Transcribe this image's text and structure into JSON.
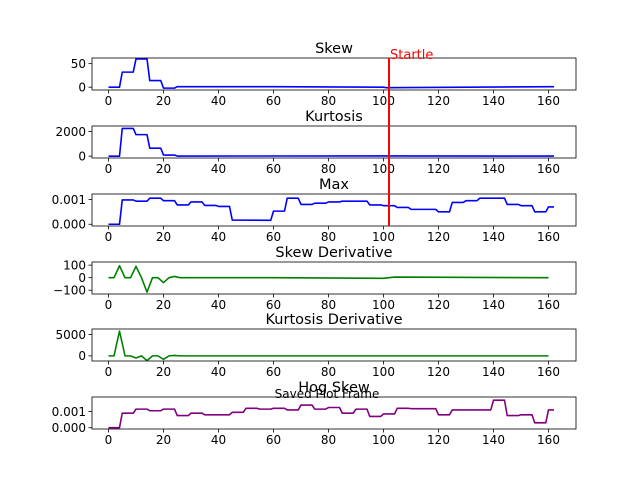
{
  "figure": {
    "annotation": {
      "label": "Startle",
      "x": 102,
      "color": "#ff0000"
    },
    "overlay_text": "Saved Plot Frame"
  },
  "chart_data": [
    {
      "type": "line",
      "title": "Skew",
      "color": "#0000ff",
      "xlim": [
        -6,
        170
      ],
      "ylim": [
        -6,
        62
      ],
      "xticks": [
        0,
        20,
        40,
        60,
        80,
        100,
        120,
        140,
        160
      ],
      "yticks": [
        0,
        50
      ],
      "ytick_labels": [
        "0",
        "50"
      ],
      "x": [
        0,
        4,
        5,
        9,
        10,
        14,
        15,
        19,
        20,
        24,
        25,
        60,
        100,
        101,
        162
      ],
      "y": [
        0,
        0,
        32,
        32,
        60,
        60,
        14,
        14,
        -2,
        -2,
        1,
        1,
        0,
        -1,
        1
      ]
    },
    {
      "type": "line",
      "title": "Kurtosis",
      "color": "#0000ff",
      "xlim": [
        -6,
        170
      ],
      "ylim": [
        -150,
        2450
      ],
      "xticks": [
        0,
        20,
        40,
        60,
        80,
        100,
        120,
        140,
        160
      ],
      "yticks": [
        0,
        2000
      ],
      "ytick_labels": [
        "0",
        "2000"
      ],
      "x": [
        0,
        4,
        5,
        9,
        10,
        14,
        15,
        19,
        20,
        24,
        25,
        100,
        162
      ],
      "y": [
        0,
        0,
        2250,
        2250,
        1750,
        1750,
        650,
        650,
        90,
        90,
        10,
        15,
        10
      ]
    },
    {
      "type": "line",
      "title": "Max",
      "color": "#0000ff",
      "xlim": [
        -6,
        170
      ],
      "ylim": [
        -7e-05,
        0.00122
      ],
      "xticks": [
        0,
        20,
        40,
        60,
        80,
        100,
        120,
        140,
        160
      ],
      "yticks": [
        0,
        0.001
      ],
      "ytick_labels": [
        "0.000",
        "0.001"
      ],
      "x": [
        0,
        4,
        5,
        9,
        10,
        14,
        15,
        19,
        20,
        24,
        25,
        29,
        30,
        34,
        35,
        39,
        40,
        44,
        45,
        59,
        60,
        64,
        65,
        69,
        70,
        74,
        75,
        79,
        80,
        84,
        85,
        94,
        95,
        99,
        100,
        104,
        105,
        109,
        110,
        119,
        120,
        124,
        125,
        129,
        130,
        134,
        135,
        144,
        145,
        149,
        150,
        154,
        155,
        159,
        160,
        162
      ],
      "y": [
        0,
        0,
        0.00098,
        0.00098,
        0.00093,
        0.00093,
        0.00105,
        0.00105,
        0.00095,
        0.00095,
        0.00078,
        0.00078,
        0.0009,
        0.0009,
        0.00076,
        0.00076,
        0.00072,
        0.00072,
        0.00017,
        0.00016,
        0.00053,
        0.00053,
        0.00105,
        0.00105,
        0.0008,
        0.0008,
        0.00085,
        0.00085,
        0.0009,
        0.0009,
        0.00093,
        0.00093,
        0.00078,
        0.00078,
        0.00075,
        0.00075,
        0.00068,
        0.00068,
        0.0006,
        0.0006,
        0.0005,
        0.0005,
        0.00088,
        0.00088,
        0.00095,
        0.00095,
        0.00105,
        0.00105,
        0.0008,
        0.0008,
        0.00075,
        0.00075,
        0.0005,
        0.0005,
        0.0007,
        0.0007
      ]
    },
    {
      "type": "line",
      "title": "Skew Derivative",
      "color": "#008000",
      "xlim": [
        -6,
        170
      ],
      "ylim": [
        -130,
        125
      ],
      "xticks": [
        0,
        20,
        40,
        60,
        80,
        100,
        120,
        140,
        160
      ],
      "yticks": [
        100,
        0,
        -100
      ],
      "ytick_labels": [
        "100",
        "0",
        "−100"
      ],
      "x": [
        0,
        2,
        4,
        6,
        8,
        10,
        12,
        14,
        16,
        18,
        20,
        22,
        24,
        26,
        60,
        100,
        104,
        160
      ],
      "y": [
        0,
        0,
        95,
        0,
        0,
        90,
        0,
        -115,
        0,
        0,
        -40,
        0,
        10,
        0,
        0,
        -5,
        5,
        0
      ]
    },
    {
      "type": "line",
      "title": "Kurtosis Derivative",
      "color": "#008000",
      "xlim": [
        -6,
        170
      ],
      "ylim": [
        -1200,
        6300
      ],
      "xticks": [
        0,
        20,
        40,
        60,
        80,
        100,
        120,
        140,
        160
      ],
      "yticks": [
        5000,
        0
      ],
      "ytick_labels": [
        "5000",
        "0"
      ],
      "x": [
        0,
        2,
        4,
        6,
        8,
        10,
        12,
        14,
        16,
        18,
        20,
        22,
        24,
        26,
        160
      ],
      "y": [
        0,
        0,
        5800,
        0,
        0,
        -500,
        0,
        -1100,
        0,
        0,
        -800,
        0,
        100,
        0,
        0
      ]
    },
    {
      "type": "line",
      "title": "Hog Skew",
      "color": "#800080",
      "xlim": [
        -6,
        170
      ],
      "ylim": [
        -8e-05,
        0.0019
      ],
      "xticks": [
        0,
        20,
        40,
        60,
        80,
        100,
        120,
        140,
        160
      ],
      "yticks": [
        0,
        0.001
      ],
      "ytick_labels": [
        "0.000",
        "0.001"
      ],
      "x": [
        0,
        4,
        5,
        9,
        10,
        14,
        15,
        19,
        20,
        24,
        25,
        29,
        30,
        34,
        35,
        39,
        40,
        44,
        45,
        49,
        50,
        54,
        55,
        59,
        60,
        64,
        65,
        69,
        70,
        74,
        75,
        79,
        80,
        84,
        85,
        89,
        90,
        94,
        95,
        99,
        100,
        104,
        105,
        109,
        110,
        119,
        120,
        124,
        125,
        129,
        130,
        139,
        140,
        144,
        145,
        149,
        150,
        154,
        155,
        159,
        160,
        162
      ],
      "y": [
        0,
        0,
        0.0009,
        0.0009,
        0.00115,
        0.00115,
        0.00105,
        0.00105,
        0.00115,
        0.00115,
        0.00075,
        0.00075,
        0.0009,
        0.0009,
        0.0008,
        0.0008,
        0.0008,
        0.0008,
        0.00095,
        0.00095,
        0.0012,
        0.0012,
        0.00115,
        0.00115,
        0.0012,
        0.0012,
        0.0011,
        0.0011,
        0.0014,
        0.0014,
        0.00115,
        0.00115,
        0.00125,
        0.00125,
        0.0009,
        0.0009,
        0.00115,
        0.00115,
        0.0007,
        0.0007,
        0.00085,
        0.00085,
        0.0012,
        0.0012,
        0.00118,
        0.00118,
        0.0008,
        0.0008,
        0.0011,
        0.0011,
        0.0011,
        0.0011,
        0.0017,
        0.0017,
        0.00075,
        0.00075,
        0.0008,
        0.0008,
        0.0003,
        0.0003,
        0.0011,
        0.0011
      ]
    }
  ]
}
